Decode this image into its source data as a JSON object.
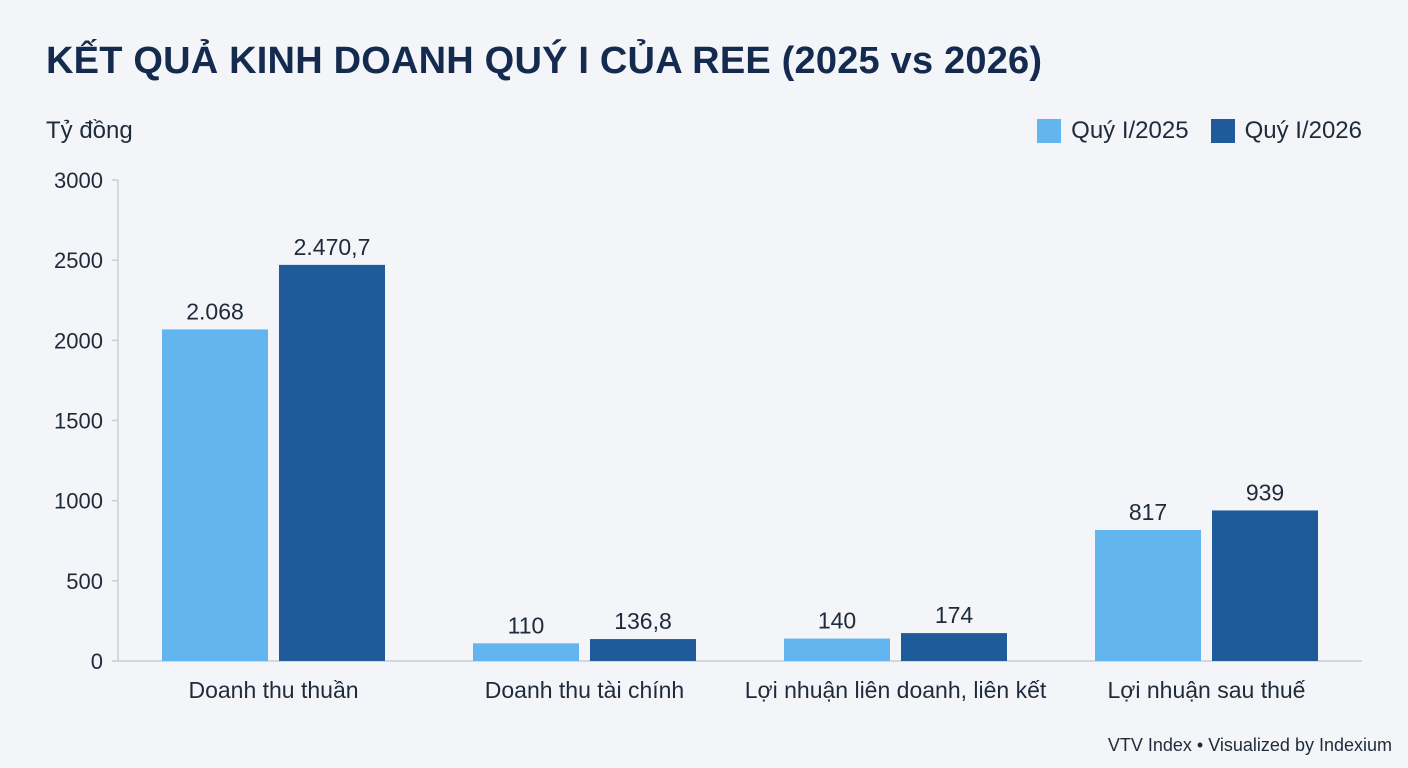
{
  "chart_data": {
    "type": "bar",
    "title": "KẾT QUẢ KINH DOANH QUÝ I CỦA REE (2025 vs 2026)",
    "unit_label": "Tỷ đồng",
    "categories": [
      "Doanh thu thuần",
      "Doanh thu tài chính",
      "Lợi nhuận liên doanh, liên kết",
      "Lợi nhuận sau thuế"
    ],
    "series": [
      {
        "name": "Quý I/2025",
        "color": "#62b5ee",
        "values": [
          2068,
          110,
          140,
          817
        ],
        "labels": [
          "2.068",
          "110",
          "140",
          "817"
        ]
      },
      {
        "name": "Quý I/2026",
        "color": "#1f5b9a",
        "values": [
          2470.7,
          136.8,
          174,
          939
        ],
        "labels": [
          "2.470,7",
          "136,8",
          "174",
          "939"
        ]
      }
    ],
    "y_ticks": [
      "0",
      "500",
      "1000",
      "1500",
      "2000",
      "2500",
      "3000"
    ],
    "ylim": [
      0,
      3000
    ],
    "legend_position": "top-right",
    "grid": false
  },
  "footer": "VTV Index • Visualized by Indexium"
}
